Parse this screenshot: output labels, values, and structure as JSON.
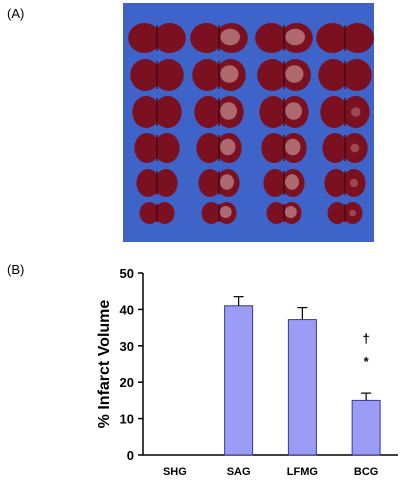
{
  "figure": {
    "panel_a_label": "(A)",
    "panel_b_label": "(B)",
    "photo": {
      "rows": 6,
      "columns": 4,
      "background_color": "#3f64c9",
      "tissue_color": "#7a1020",
      "infarct_color": "#d9b3b3"
    }
  },
  "colors": {
    "bar_fill": "#9b9cf5",
    "bar_stroke": "#3a3a8c"
  },
  "chart_data": {
    "type": "bar",
    "categories": [
      "SHG",
      "SAG",
      "LFMG",
      "BCG"
    ],
    "values": [
      0,
      41,
      37.2,
      15
    ],
    "errors": [
      0,
      2.5,
      3.3,
      2
    ],
    "ylabel": "% Infarct Volume",
    "xlabel": "",
    "ylim": [
      0,
      50
    ],
    "yticks": [
      0,
      10,
      20,
      30,
      40,
      50
    ],
    "annotations": [
      {
        "category": "BCG",
        "text": "†"
      },
      {
        "category": "BCG",
        "text": "*"
      }
    ]
  }
}
